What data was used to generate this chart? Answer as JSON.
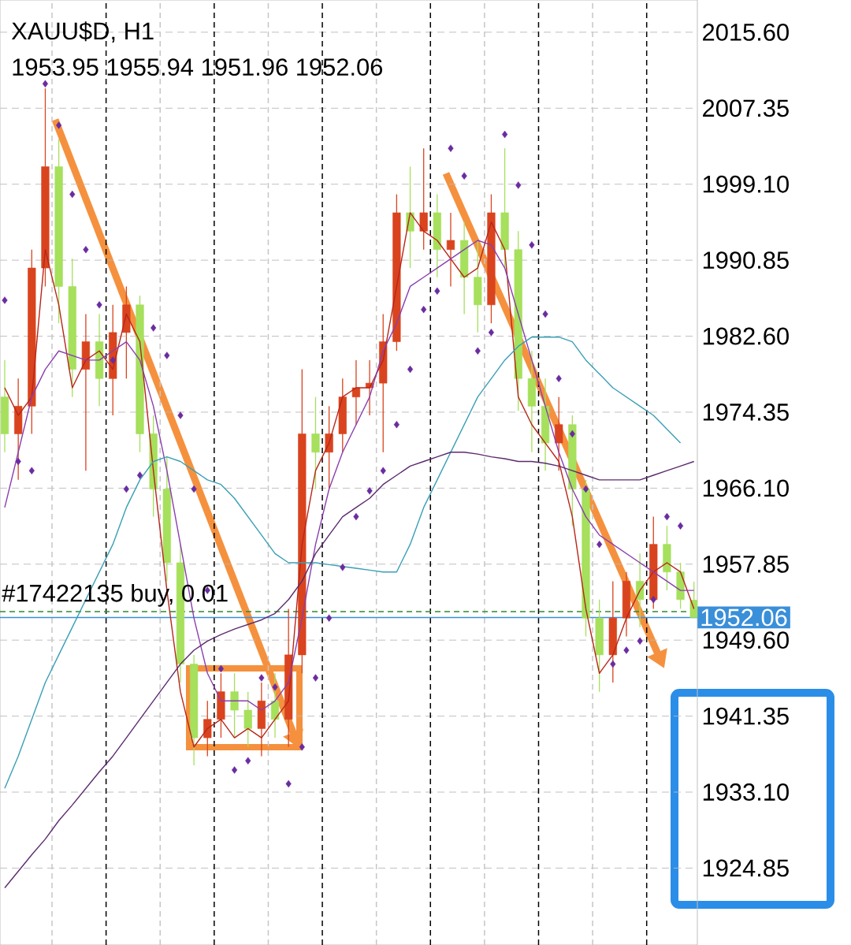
{
  "chart_data": {
    "type": "candlestick",
    "title": "XAUU$D, H1",
    "subtitle": "1953.95 1955.94 1951.96 1952.06",
    "categories": [
      null,
      null,
      null,
      null,
      null,
      null,
      null,
      null,
      null,
      null,
      null,
      null,
      null,
      null,
      null,
      null,
      null,
      null,
      null,
      null,
      null,
      null,
      null,
      null,
      null,
      null,
      null,
      null,
      null,
      null,
      null,
      null,
      null,
      null,
      null,
      null,
      null,
      null,
      null,
      null,
      null,
      null,
      null,
      null,
      null,
      null,
      null,
      null,
      null,
      null,
      null,
      null
    ],
    "ohlc": [
      [
        1976,
        1980,
        1970,
        1972
      ],
      [
        1972,
        1978,
        1967,
        1975
      ],
      [
        1975,
        1992,
        1972,
        1990
      ],
      [
        1990,
        2009.5,
        1988,
        2001
      ],
      [
        2001,
        2004,
        1984,
        1988
      ],
      [
        1988,
        1991,
        1976,
        1979
      ],
      [
        1979,
        1985,
        1968,
        1982
      ],
      [
        1982,
        1985,
        1975,
        1978
      ],
      [
        1978,
        1986,
        1974,
        1983
      ],
      [
        1983,
        1988,
        1978,
        1986
      ],
      [
        1986,
        1987,
        1970,
        1972
      ],
      [
        1972,
        1974,
        1963,
        1966
      ],
      [
        1966,
        1969.5,
        1956,
        1958
      ],
      [
        1958,
        1960,
        1945,
        1947
      ],
      [
        1947,
        1948,
        1936,
        1939
      ],
      [
        1939,
        1943,
        1937,
        1941
      ],
      [
        1941,
        1946,
        1939,
        1944
      ],
      [
        1944,
        1946,
        1939,
        1942
      ],
      [
        1942,
        1944,
        1938,
        1940
      ],
      [
        1940,
        1945,
        1937,
        1943
      ],
      [
        1943,
        1946,
        1939,
        1941
      ],
      [
        1941,
        1953,
        1938,
        1948
      ],
      [
        1948,
        1979,
        1946,
        1972
      ],
      [
        1972,
        1976,
        1966,
        1970
      ],
      [
        1970,
        1975,
        1966,
        1972
      ],
      [
        1972,
        1978,
        1970,
        1976
      ],
      [
        1976,
        1980,
        1973,
        1977
      ],
      [
        1977,
        1980,
        1974,
        1977.5
      ],
      [
        1977.5,
        1985,
        1970,
        1982
      ],
      [
        1982,
        1998,
        1981,
        1996
      ],
      [
        1996,
        2001,
        1990,
        1994
      ],
      [
        1994,
        2003,
        1992,
        1996
      ],
      [
        1996,
        1998,
        1989,
        1992
      ],
      [
        1992,
        1996,
        1988,
        1993
      ],
      [
        1993,
        1995,
        1985,
        1989
      ],
      [
        1989,
        1993,
        1983,
        1986
      ],
      [
        1986,
        1998,
        1984,
        1996
      ],
      [
        1996,
        2003,
        1990,
        1992
      ],
      [
        1992,
        1994,
        1974.5,
        1978
      ],
      [
        1978,
        1981,
        1970,
        1975
      ],
      [
        1975,
        1978,
        1968,
        1971
      ],
      [
        1971,
        1976,
        1968,
        1973
      ],
      [
        1973,
        1974,
        1962,
        1966
      ],
      [
        1966,
        1967,
        1950,
        1952
      ],
      [
        1952,
        1954,
        1944,
        1948
      ],
      [
        1948,
        1956,
        1945,
        1952
      ],
      [
        1952,
        1957,
        1950,
        1956
      ],
      [
        1956,
        1959,
        1951,
        1954
      ],
      [
        1954,
        1963,
        1953,
        1960
      ],
      [
        1960,
        1962,
        1955,
        1957
      ],
      [
        1957,
        1958,
        1953,
        1954
      ],
      [
        1953.95,
        1955.94,
        1951.96,
        1952.06
      ]
    ],
    "colors": [
      "#a6e05c",
      "#d9441e",
      "#d9441e",
      "#d9441e",
      "#a6e05c",
      "#a6e05c",
      "#d9441e",
      "#a6e05c",
      "#d9441e",
      "#d9441e",
      "#a6e05c",
      "#a6e05c",
      "#a6e05c",
      "#a6e05c",
      "#a6e05c",
      "#d9441e",
      "#d9441e",
      "#a6e05c",
      "#a6e05c",
      "#d9441e",
      "#a6e05c",
      "#d9441e",
      "#d9441e",
      "#a6e05c",
      "#d9441e",
      "#d9441e",
      "#d9441e",
      "#d9441e",
      "#d9441e",
      "#d9441e",
      "#a6e05c",
      "#d9441e",
      "#a6e05c",
      "#d9441e",
      "#a6e05c",
      "#a6e05c",
      "#d9441e",
      "#a6e05c",
      "#a6e05c",
      "#a6e05c",
      "#a6e05c",
      "#d9441e",
      "#a6e05c",
      "#a6e05c",
      "#a6e05c",
      "#d9441e",
      "#d9441e",
      "#a6e05c",
      "#d9441e",
      "#a6e05c",
      "#a6e05c",
      "#a6e05c"
    ],
    "series": [
      {
        "type": "line",
        "color": "#b8261a",
        "values": [
          1977,
          1974,
          1976,
          1992,
          1986,
          1977,
          1980,
          1981,
          1979,
          1985,
          1982,
          1968,
          1955,
          1944,
          1938,
          1940,
          1941,
          1939,
          1940,
          1939,
          1941,
          1943,
          1960,
          1968,
          1971,
          1976,
          1977,
          1977,
          1980,
          1988,
          1996,
          1994,
          1993,
          1991,
          1989,
          1990,
          1995,
          1992,
          1976,
          1973,
          1971,
          1969,
          1963,
          1953,
          1946,
          1948,
          1952,
          1955,
          1957,
          1958,
          1957,
          1953
        ]
      },
      {
        "type": "line",
        "color": "#8a3fb0",
        "values": [
          1964,
          1970,
          1976,
          1979,
          1981,
          1980.5,
          1980,
          1980,
          1981,
          1982,
          1980,
          1975,
          1968,
          1960,
          1952,
          1946,
          1943,
          1943,
          1943,
          1942,
          1943,
          1945,
          1952,
          1960,
          1966,
          1970,
          1973,
          1976,
          1981,
          1984,
          1988,
          1989,
          1990,
          1991,
          1992,
          1993,
          1992.5,
          1990,
          1985,
          1980,
          1975,
          1970,
          1966,
          1963,
          1961,
          1960,
          1959,
          1958,
          1957,
          1956,
          1955,
          1955
        ]
      },
      {
        "type": "line",
        "color": "#3a9fb5",
        "values": [
          1933.5,
          1937,
          1941,
          1945,
          1948,
          1951,
          1954,
          1957,
          1960,
          1964,
          1967,
          1969,
          1969.5,
          1969,
          1968,
          1967,
          1966.5,
          1965,
          1963,
          1961,
          1959,
          1958,
          1958,
          1958,
          1957.8,
          1957.6,
          1957.4,
          1957.2,
          1957,
          1957,
          1960,
          1964,
          1967,
          1970,
          1973,
          1976,
          1978,
          1980,
          1981.5,
          1982.5,
          1982.5,
          1982.5,
          1982,
          1980,
          1978.5,
          1977,
          1976,
          1975,
          1974,
          1972.5,
          1971,
          null
        ]
      },
      {
        "type": "line",
        "color": "#5b2a6e",
        "values": [
          1922.7,
          1924.5,
          1926.3,
          1928,
          1930,
          1931.7,
          1933.5,
          1935.3,
          1937,
          1939,
          1941,
          1943,
          1945,
          1947,
          1948.5,
          1949.5,
          1950.2,
          1950.8,
          1951.3,
          1951.8,
          1952.5,
          1954,
          1956,
          1959,
          1961,
          1963,
          1964,
          1965,
          1966.5,
          1967.5,
          1968.5,
          1969,
          1969.5,
          1970,
          1970,
          1969.8,
          1969.5,
          1969.3,
          1969,
          1969,
          1968.8,
          1968.5,
          1968,
          1967.5,
          1967,
          1967,
          1967,
          1967,
          1967.5,
          1968,
          1968.5,
          1969
        ]
      },
      {
        "type": "scatter",
        "marker": "diamond",
        "color": "#6a2ca0",
        "values": [
          1986.5,
          1969,
          1968,
          2010,
          2005.5,
          1998,
          1992,
          1986,
          1980,
          1966,
          1967.5,
          1983.5,
          1980.5,
          1974,
          1966,
          1955,
          1946.5,
          1935.5,
          1936.5,
          1945.5,
          1944.5,
          1934,
          1938,
          1945.5,
          1952,
          1957.5,
          1963,
          1965.8,
          1968,
          1973,
          1979,
          1985.5,
          1987.5,
          2003,
          2000,
          1981,
          1983,
          2004.5,
          1999,
          1992.5,
          1985,
          1978,
          1972,
          1966,
          1960,
          1947,
          1948.5,
          1949.5,
          1954,
          1963,
          1962,
          null
        ]
      }
    ],
    "ylim": [
      1916.5,
      2019.1
    ],
    "yticks": [
      {
        "value": 2015.6,
        "label": "2015.60"
      },
      {
        "value": 2007.35,
        "label": "2007.35"
      },
      {
        "value": 1999.1,
        "label": "1999.10"
      },
      {
        "value": 1990.85,
        "label": "1990.85"
      },
      {
        "value": 1982.6,
        "label": "1982.60"
      },
      {
        "value": 1974.35,
        "label": "1974.35"
      },
      {
        "value": 1966.1,
        "label": "1966.10"
      },
      {
        "value": 1957.85,
        "label": "1957.85"
      },
      {
        "value": 1949.6,
        "label": "1949.60"
      },
      {
        "value": 1941.35,
        "label": "1941.35"
      },
      {
        "value": 1933.1,
        "label": "1933.10"
      },
      {
        "value": 1924.85,
        "label": "1924.85"
      }
    ],
    "grid": true,
    "ref_lines": [
      {
        "axis": "y",
        "value": 1952.7,
        "label": "#17422135 buy, 0.01",
        "color": "#2e8b2e",
        "line_style": "dashed"
      },
      {
        "axis": "y",
        "value": 1952.06,
        "label": "1952.06",
        "color": "#3a8fd9",
        "line_style": "solid"
      }
    ]
  }
}
